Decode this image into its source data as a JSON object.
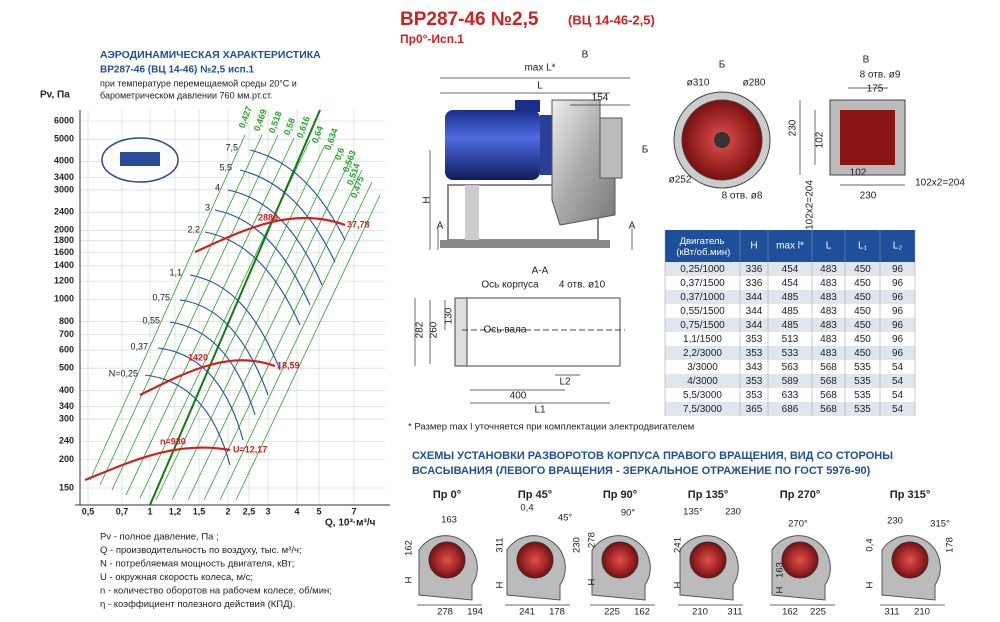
{
  "header": {
    "title": "ВР287-46 №2,5",
    "title_note": "(ВЦ 14-46-2,5)",
    "subtitle": "Пр0°-Исп.1"
  },
  "characteristic": {
    "title": "АЭРОДИНАМИЧЕСКАЯ ХАРАКТЕРИСТИКА",
    "model": "ВР287-46 (ВЦ 14-46) №2,5 исп.1",
    "conditions": [
      "при температуре перемещаемой среды 20°С и",
      "барометрическом давлении 760 мм.рт.ст."
    ],
    "y_label": "Pv, Па",
    "x_label": "Q, 10³·м³/ч",
    "yticks": [
      6000,
      5000,
      4000,
      3400,
      3000,
      2400,
      2000,
      1800,
      1600,
      1400,
      1200,
      1000,
      800,
      700,
      600,
      500,
      400,
      340,
      300,
      240,
      200,
      150
    ],
    "xticks": [
      "0,5",
      "0,7",
      "1",
      "1,2",
      "1,5",
      "2",
      "2,5",
      "3",
      "4",
      "5",
      "7"
    ],
    "power_labels": [
      "7,5",
      "5,5",
      "4",
      "3",
      "2,2",
      "1,1",
      "0,75",
      "0,55",
      "0,37",
      "N=0,25"
    ],
    "efficiency_labels": [
      "0,427",
      "0,469",
      "0,518",
      "0,58",
      "0,616",
      "0,64",
      "0,634",
      "0,6",
      "0,563",
      "0,514",
      "0,475"
    ],
    "speed_labels": [
      "2886",
      "37,78",
      "1420",
      "18,59",
      "n=930",
      "U=12,17"
    ],
    "legend": [
      "Pv - полное давление, Па ;",
      "Q - производительность по воздуху, тыс. м³/ч;",
      "N - потребляемая мощность двигателя, кВт;",
      "U - окружная скорость колеса, м/с;",
      "n - количество оборотов на рабочем колесе, об/мин;",
      "η - коэффициент полезного действия (КПД)."
    ]
  },
  "drawing_main": {
    "labels": [
      "max L*",
      "В",
      "L",
      "154",
      "Б",
      "H",
      "А",
      "А"
    ]
  },
  "drawing_b": {
    "labels": [
      "Б",
      "ø310",
      "ø280",
      "ø252",
      "8 отв. ø8"
    ]
  },
  "drawing_v": {
    "labels": [
      "В",
      "8 отв. ø9",
      "175",
      "230",
      "102",
      "102",
      "102x2=204",
      "230",
      "102x2=204"
    ]
  },
  "section_aa": {
    "labels": [
      "А-А",
      "Ось корпуса",
      "4 отв. ø10",
      "Ось вала",
      "282",
      "260",
      "130",
      "L2",
      "400",
      "L1"
    ]
  },
  "table": {
    "header": [
      "Двигатель (кВт/об.мин)",
      "H",
      "max l*",
      "L",
      "L₁",
      "L₂"
    ],
    "rows": [
      [
        "0,25/1000",
        "336",
        "454",
        "483",
        "450",
        "96"
      ],
      [
        "0,37/1500",
        "336",
        "454",
        "483",
        "450",
        "96"
      ],
      [
        "0,37/1000",
        "344",
        "485",
        "483",
        "450",
        "96"
      ],
      [
        "0,55/1500",
        "344",
        "485",
        "483",
        "450",
        "96"
      ],
      [
        "0,75/1500",
        "344",
        "485",
        "483",
        "450",
        "96"
      ],
      [
        "1,1/1500",
        "353",
        "513",
        "483",
        "450",
        "96"
      ],
      [
        "2,2/3000",
        "353",
        "533",
        "483",
        "450",
        "96"
      ],
      [
        "3/3000",
        "343",
        "563",
        "568",
        "535",
        "54"
      ],
      [
        "4/3000",
        "353",
        "589",
        "568",
        "535",
        "54"
      ],
      [
        "5,5/3000",
        "353",
        "633",
        "568",
        "535",
        "54"
      ],
      [
        "7,5/3000",
        "365",
        "686",
        "568",
        "535",
        "54"
      ]
    ]
  },
  "footnote": "* Размер max l уточняется при комплектации электродвигателем",
  "schemes": {
    "title": [
      "СХЕМЫ УСТАНОВКИ РАЗВОРОТОВ КОРПУСА ПРАВОГО ВРАЩЕНИЯ, ВИД СО СТОРОНЫ",
      "ВСАСЫВАНИЯ (ЛЕВОГО ВРАЩЕНИЯ - ЗЕРКАЛЬНОЕ ОТРАЖЕНИЕ ПО ГОСТ 5976-90)"
    ],
    "items": [
      {
        "label": "Пр 0°",
        "dims": [
          "163",
          "162",
          "H",
          "278",
          "194"
        ]
      },
      {
        "label": "Пр 45°",
        "dims": [
          "0,4",
          "45°",
          "311",
          "230",
          "H",
          "241",
          "178"
        ]
      },
      {
        "label": "Пр 90°",
        "dims": [
          "90°",
          "278",
          "H",
          "225",
          "162"
        ]
      },
      {
        "label": "Пр 135°",
        "dims": [
          "135°",
          "230",
          "241",
          "H",
          "210",
          "311"
        ]
      },
      {
        "label": "Пр 270°",
        "dims": [
          "270°",
          "163",
          "H",
          "162",
          "225"
        ]
      },
      {
        "label": "Пр 315°",
        "dims": [
          "230",
          "315°",
          "0,4",
          "178",
          "H",
          "311",
          "210"
        ]
      }
    ]
  }
}
